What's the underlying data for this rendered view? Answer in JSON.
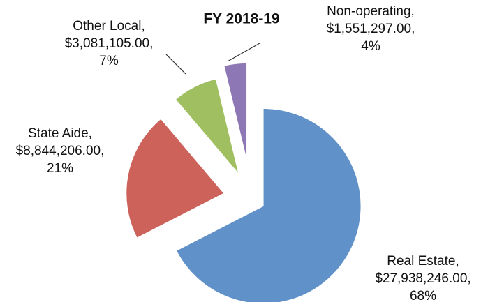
{
  "chart_data": {
    "type": "pie",
    "title": "FY 2018-19",
    "categories": [
      "Real Estate,",
      "State Aide,",
      "Other Local,",
      "Non-operating,"
    ],
    "values": [
      27938246.0,
      8844206.0,
      3081105.0,
      1551297.0
    ],
    "value_labels": [
      "$27,938,246.00,",
      "$8,844,206.00,",
      "$3,081,105.00,",
      "$1,551,297.00,"
    ],
    "percents": [
      68,
      21,
      7,
      4
    ],
    "percent_labels": [
      "68%",
      "21%",
      "7%",
      "4%"
    ],
    "colors": [
      "#6191c9",
      "#cd625b",
      "#a0bf60",
      "#8e77b5"
    ]
  }
}
